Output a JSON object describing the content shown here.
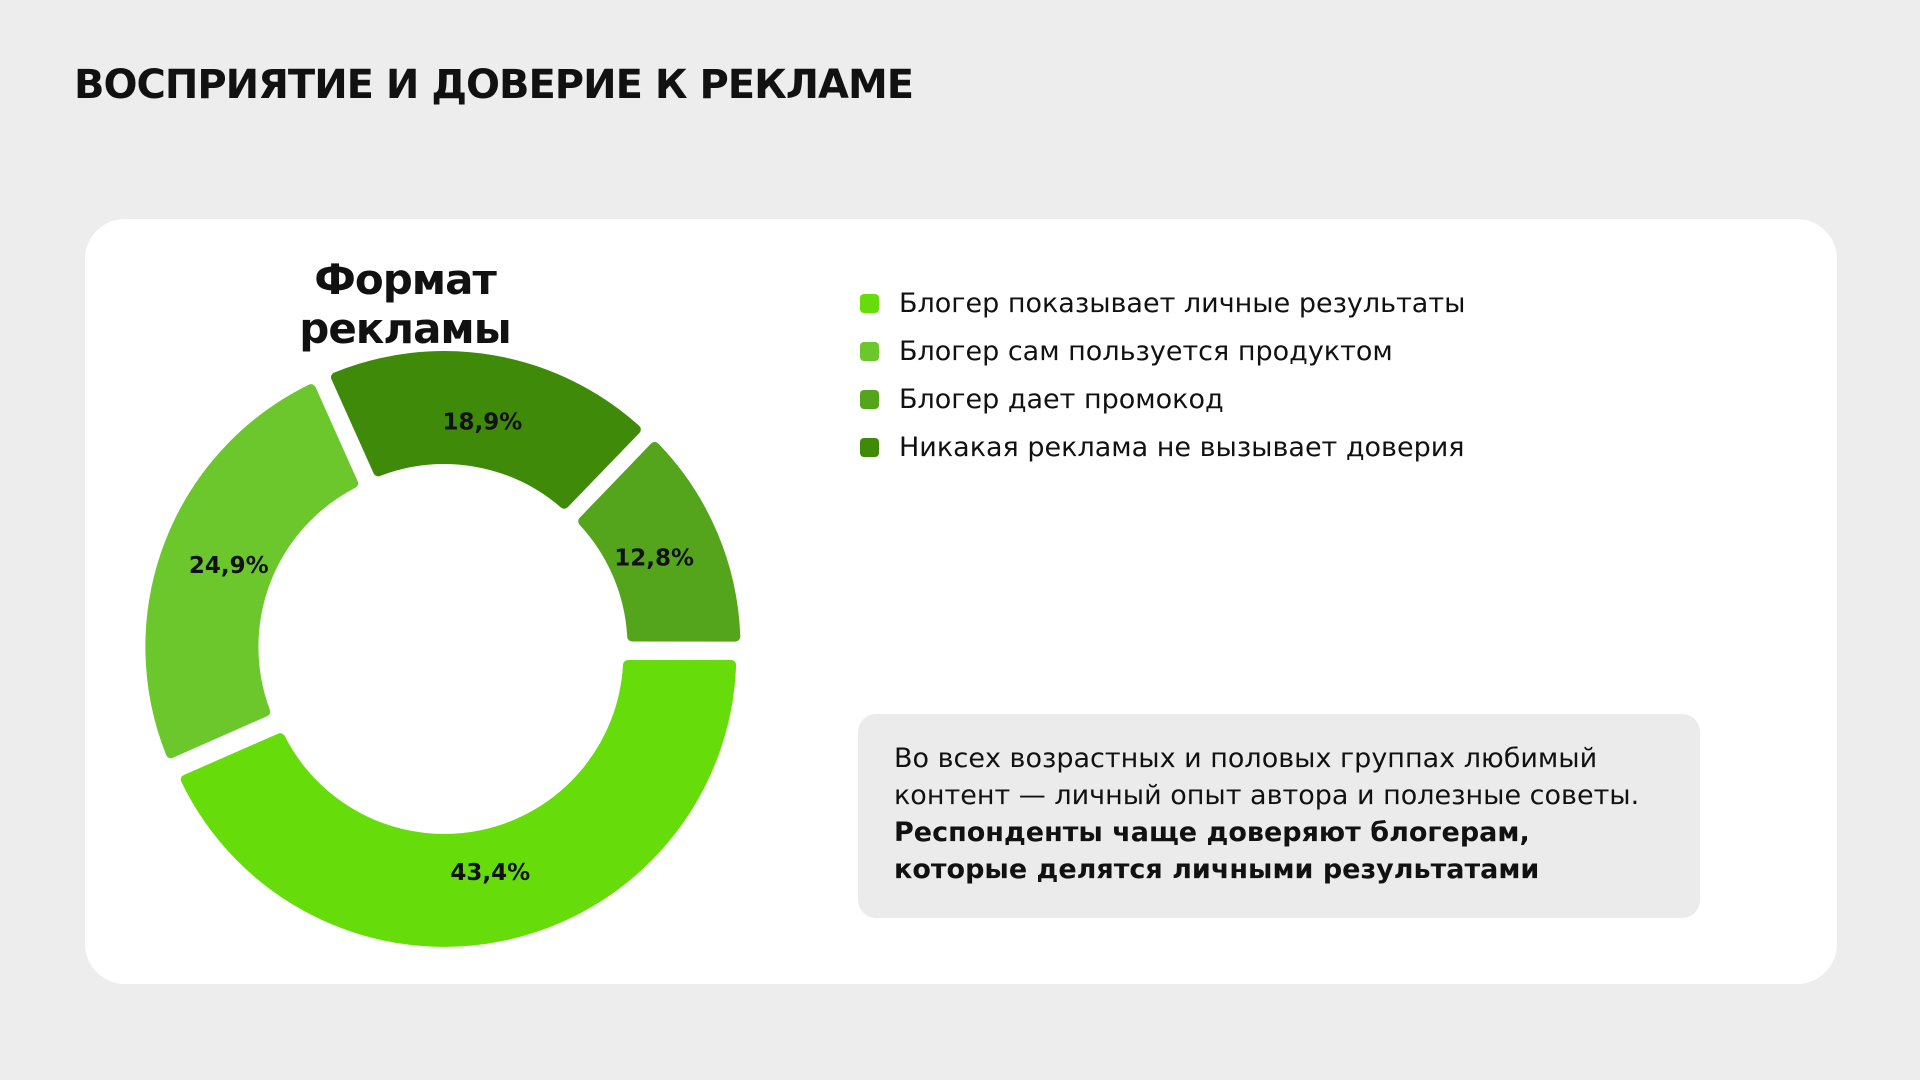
{
  "page_title": "ВОСПРИЯТИЕ И ДОВЕРИЕ К РЕКЛАМЕ",
  "chart_data": {
    "type": "donut",
    "title": "Формат рекламы",
    "categories": [
      "Блогер показывает личные результаты",
      "Блогер сам пользуется продуктом",
      "Блогер дает промокод",
      "Никакая реклама не вызывает доверия"
    ],
    "values": [
      43.4,
      24.9,
      12.8,
      18.9
    ],
    "value_labels": [
      "43,4%",
      "24,9%",
      "12,8%",
      "18,9%"
    ],
    "colors": [
      "#66dd0a",
      "#6cc72c",
      "#54a51c",
      "#3f8a09"
    ]
  },
  "note": {
    "text": "Во всех возрастных и половых группах любимый контент — личный опыт автора и полезные советы.",
    "bold": "Респонденты чаще доверяют блогерам, которые делятся личными результатами"
  }
}
